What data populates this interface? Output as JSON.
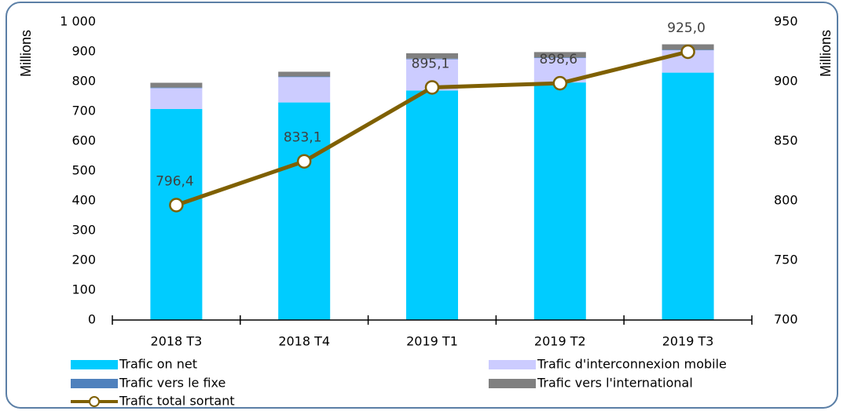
{
  "chart_data": {
    "type": "bar",
    "stacked": true,
    "categories": [
      "2018 T3",
      "2018 T4",
      "2019 T1",
      "2019 T2",
      "2019 T3"
    ],
    "ylabel": "Millions",
    "y2label": "Millions",
    "ylim": [
      0,
      1000
    ],
    "yticks": [
      0,
      100,
      200,
      300,
      400,
      500,
      600,
      700,
      800,
      900,
      {
        "value": 1000,
        "label": "1 000"
      }
    ],
    "y2lim": [
      700,
      950
    ],
    "y2ticks": [
      700,
      750,
      800,
      850,
      900,
      950
    ],
    "series": [
      {
        "name": "Trafic on net",
        "color": "#00ccff",
        "values": [
          708,
          730,
          770,
          797,
          830
        ]
      },
      {
        "name": "Trafic d'interconnexion mobile",
        "color": "#ccccff",
        "values": [
          70,
          85,
          105,
          82,
          75
        ]
      },
      {
        "name": "Trafic vers le fixe",
        "color": "#4f81bd",
        "values": [
          2,
          2,
          2,
          2,
          2
        ]
      },
      {
        "name": "Trafic vers l'international",
        "color": "#808080",
        "values": [
          16,
          16,
          18,
          18,
          18
        ]
      },
      {
        "name": "Trafic total sortant",
        "type": "line",
        "axis": "y2",
        "color": "#7f6000",
        "values": [
          796.4,
          833.1,
          895.1,
          898.6,
          925.0
        ],
        "value_labels": [
          "796,4",
          "833,1",
          "895,1",
          "898,6",
          "925,0"
        ]
      }
    ]
  }
}
